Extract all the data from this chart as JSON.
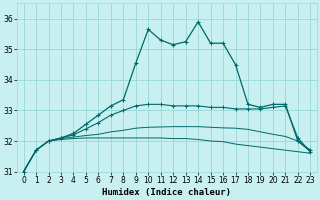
{
  "xlabel": "Humidex (Indice chaleur)",
  "background_color": "#c8f0f0",
  "grid_color": "#98d8d8",
  "line_color": "#006868",
  "xlim": [
    -0.5,
    23.5
  ],
  "ylim": [
    31.0,
    36.5
  ],
  "yticks": [
    31,
    32,
    33,
    34,
    35,
    36
  ],
  "xticks": [
    0,
    1,
    2,
    3,
    4,
    5,
    6,
    7,
    8,
    9,
    10,
    11,
    12,
    13,
    14,
    15,
    16,
    17,
    18,
    19,
    20,
    21,
    22,
    23
  ],
  "series": [
    {
      "x": [
        0,
        1,
        2,
        3,
        4,
        5,
        6,
        7,
        8,
        9,
        10,
        11,
        12,
        13,
        14,
        15,
        16,
        17,
        18,
        19,
        20,
        21,
        22,
        23
      ],
      "y": [
        31.0,
        31.7,
        32.0,
        32.1,
        32.25,
        32.55,
        32.85,
        33.15,
        33.35,
        34.55,
        35.65,
        35.3,
        35.15,
        35.25,
        35.9,
        35.2,
        35.2,
        34.5,
        33.2,
        33.1,
        33.2,
        33.2,
        32.0,
        31.7
      ]
    },
    {
      "x": [
        0,
        1,
        2,
        3,
        4,
        5,
        6,
        7,
        8,
        9,
        10,
        11,
        12,
        13,
        14,
        15,
        16,
        17,
        18,
        19,
        20,
        21,
        22,
        23
      ],
      "y": [
        31.0,
        31.7,
        32.0,
        32.1,
        32.2,
        32.4,
        32.6,
        32.85,
        33.0,
        33.15,
        33.2,
        33.2,
        33.15,
        33.15,
        33.15,
        33.1,
        33.1,
        33.05,
        33.05,
        33.05,
        33.1,
        33.15,
        32.1,
        31.65
      ]
    },
    {
      "x": [
        0,
        1,
        2,
        3,
        4,
        5,
        6,
        7,
        8,
        9,
        10,
        11,
        12,
        13,
        14,
        15,
        16,
        17,
        18,
        19,
        20,
        21,
        22,
        23
      ],
      "y": [
        31.0,
        31.7,
        32.0,
        32.08,
        32.13,
        32.18,
        32.22,
        32.3,
        32.35,
        32.42,
        32.45,
        32.46,
        32.47,
        32.47,
        32.47,
        32.45,
        32.43,
        32.42,
        32.38,
        32.3,
        32.22,
        32.15,
        32.0,
        31.65
      ]
    },
    {
      "x": [
        0,
        1,
        2,
        3,
        4,
        5,
        6,
        7,
        8,
        9,
        10,
        11,
        12,
        13,
        14,
        15,
        16,
        17,
        18,
        19,
        20,
        21,
        22,
        23
      ],
      "y": [
        31.0,
        31.7,
        32.0,
        32.05,
        32.08,
        32.1,
        32.1,
        32.1,
        32.1,
        32.1,
        32.1,
        32.1,
        32.08,
        32.08,
        32.05,
        32.0,
        31.98,
        31.9,
        31.85,
        31.8,
        31.75,
        31.7,
        31.65,
        31.6
      ]
    }
  ]
}
